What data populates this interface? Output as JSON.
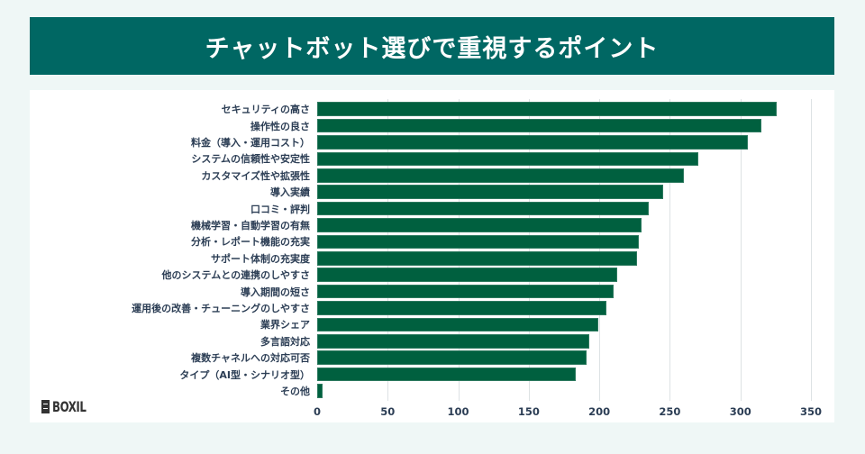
{
  "header": {
    "title": "チャットボット選びで重視するポイント"
  },
  "logo": {
    "text": "BOXIL"
  },
  "colors": {
    "banner": "#006763",
    "bar": "#00603f",
    "background": "#eff7f6",
    "text": "#2c3e55"
  },
  "chart_data": {
    "type": "bar",
    "orientation": "horizontal",
    "title": "チャットボット選びで重視するポイント",
    "xlabel": "",
    "ylabel": "",
    "xlim": [
      0,
      350
    ],
    "xticks": [
      0,
      50,
      100,
      150,
      200,
      250,
      300,
      350
    ],
    "grid": true,
    "categories": [
      "セキュリティの高さ",
      "操作性の良さ",
      "料金（導入・運用コスト）",
      "システムの信頼性や安定性",
      "カスタマイズ性や拡張性",
      "導入実績",
      "口コミ・評判",
      "機械学習・自動学習の有無",
      "分析・レポート機能の充実",
      "サポート体制の充実度",
      "他のシステムとの連携のしやすさ",
      "導入期間の短さ",
      "運用後の改善・チューニングのしやすさ",
      "業界シェア",
      "多言語対応",
      "複数チャネルへの対応可否",
      "タイプ（AI型・シナリオ型）",
      "その他"
    ],
    "values": [
      326,
      315,
      305,
      270,
      260,
      245,
      235,
      230,
      228,
      227,
      213,
      210,
      205,
      199,
      193,
      191,
      183,
      4
    ]
  }
}
